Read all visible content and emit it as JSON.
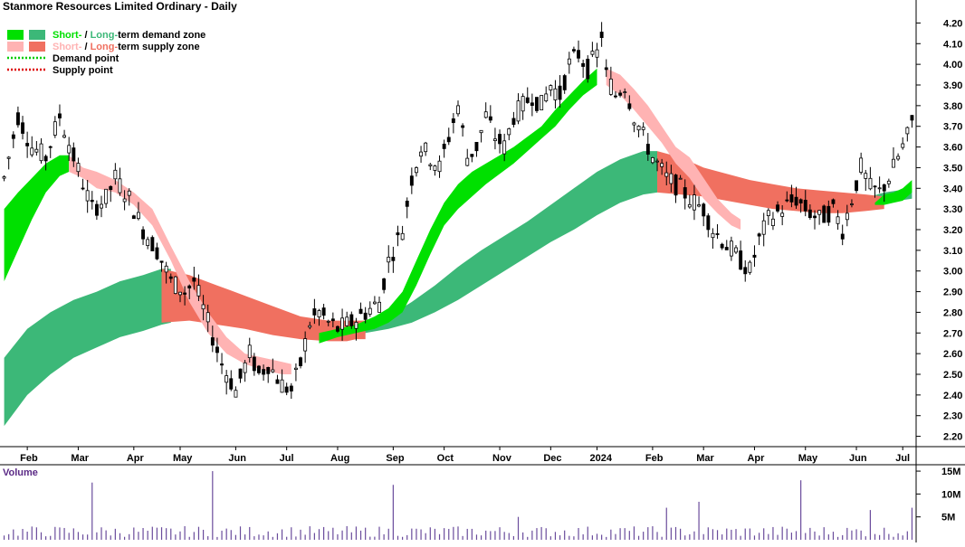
{
  "chart_data": {
    "type": "candlestick",
    "title": "Stanmore Resources Limited Ordinary - Daily",
    "legend": [
      {
        "short": "Short-",
        "sep": " / ",
        "long": "Long-",
        "rest": "term demand zone",
        "short_color": "#00e000",
        "long_color": "#3cb878"
      },
      {
        "short": "Short-",
        "sep": " / ",
        "long": "Long-",
        "rest": "term supply zone",
        "short_color": "#ffb3b3",
        "long_color": "#f07060"
      },
      {
        "label": "Demand point",
        "color": "#00cc00"
      },
      {
        "label": "Supply point",
        "color": "#dd0000"
      }
    ],
    "legend_placement": "top-left",
    "ylim": [
      2.15,
      4.25
    ],
    "y_ticks": [
      "4.20",
      "4.10",
      "4.00",
      "3.90",
      "3.80",
      "3.70",
      "3.60",
      "3.50",
      "3.40",
      "3.30",
      "3.20",
      "3.10",
      "3.00",
      "2.90",
      "2.80",
      "2.70",
      "2.60",
      "2.50",
      "2.40",
      "2.30",
      "2.20"
    ],
    "x_ticks": [
      "Feb",
      "Mar",
      "Apr",
      "May",
      "Jun",
      "Jul",
      "Aug",
      "Sep",
      "Oct",
      "Nov",
      "Dec",
      "2024",
      "Feb",
      "Mar",
      "Apr",
      "May",
      "Jun",
      "Jul"
    ],
    "x_tick_pos": [
      5,
      16,
      28,
      38,
      50,
      61,
      72,
      84,
      95,
      107,
      118,
      128,
      140,
      151,
      162,
      173,
      184,
      194
    ],
    "n_bars": 197,
    "price_path": [
      [
        0,
        3.45
      ],
      [
        3,
        3.75
      ],
      [
        6,
        3.6
      ],
      [
        9,
        3.55
      ],
      [
        12,
        3.75
      ],
      [
        15,
        3.55
      ],
      [
        19,
        3.3
      ],
      [
        22,
        3.35
      ],
      [
        24,
        3.45
      ],
      [
        27,
        3.35
      ],
      [
        30,
        3.2
      ],
      [
        33,
        3.1
      ],
      [
        36,
        2.95
      ],
      [
        39,
        2.9
      ],
      [
        41,
        2.95
      ],
      [
        44,
        2.75
      ],
      [
        47,
        2.55
      ],
      [
        50,
        2.42
      ],
      [
        53,
        2.6
      ],
      [
        55,
        2.5
      ],
      [
        57,
        2.55
      ],
      [
        60,
        2.45
      ],
      [
        62,
        2.42
      ],
      [
        64,
        2.55
      ],
      [
        66,
        2.75
      ],
      [
        68,
        2.8
      ],
      [
        70,
        2.75
      ],
      [
        72,
        2.72
      ],
      [
        75,
        2.75
      ],
      [
        78,
        2.8
      ],
      [
        81,
        2.85
      ],
      [
        83,
        3.05
      ],
      [
        86,
        3.2
      ],
      [
        88,
        3.45
      ],
      [
        90,
        3.6
      ],
      [
        92,
        3.55
      ],
      [
        94,
        3.5
      ],
      [
        96,
        3.65
      ],
      [
        98,
        3.8
      ],
      [
        100,
        3.55
      ],
      [
        102,
        3.6
      ],
      [
        104,
        3.75
      ],
      [
        106,
        3.65
      ],
      [
        108,
        3.6
      ],
      [
        110,
        3.75
      ],
      [
        112,
        3.8
      ],
      [
        114,
        3.85
      ],
      [
        116,
        3.8
      ],
      [
        118,
        3.9
      ],
      [
        120,
        3.85
      ],
      [
        122,
        4.0
      ],
      [
        124,
        4.05
      ],
      [
        126,
        3.98
      ],
      [
        128,
        4.05
      ],
      [
        129,
        4.15
      ],
      [
        130,
        3.95
      ],
      [
        132,
        3.85
      ],
      [
        134,
        3.9
      ],
      [
        136,
        3.75
      ],
      [
        138,
        3.65
      ],
      [
        140,
        3.55
      ],
      [
        143,
        3.45
      ],
      [
        146,
        3.4
      ],
      [
        148,
        3.35
      ],
      [
        151,
        3.3
      ],
      [
        153,
        3.2
      ],
      [
        155,
        3.15
      ],
      [
        157,
        3.1
      ],
      [
        159,
        3.05
      ],
      [
        161,
        3.0
      ],
      [
        163,
        3.15
      ],
      [
        165,
        3.25
      ],
      [
        168,
        3.3
      ],
      [
        171,
        3.35
      ],
      [
        173,
        3.3
      ],
      [
        176,
        3.25
      ],
      [
        179,
        3.3
      ],
      [
        181,
        3.2
      ],
      [
        183,
        3.35
      ],
      [
        185,
        3.5
      ],
      [
        187,
        3.4
      ],
      [
        189,
        3.38
      ],
      [
        191,
        3.45
      ],
      [
        193,
        3.55
      ],
      [
        195,
        3.65
      ],
      [
        196,
        3.72
      ]
    ],
    "short_demand_zones": [
      {
        "x": [
          0,
          3,
          6,
          9,
          12,
          14
        ],
        "hi": [
          3.3,
          3.38,
          3.45,
          3.52,
          3.56,
          3.56
        ],
        "lo": [
          2.95,
          3.1,
          3.25,
          3.38,
          3.46,
          3.48
        ]
      },
      {
        "x": [
          68,
          72,
          76,
          80,
          83,
          86,
          89,
          92,
          95,
          98,
          101,
          104,
          107,
          110,
          113,
          116,
          119,
          122,
          125,
          128
        ],
        "hi": [
          2.7,
          2.72,
          2.74,
          2.78,
          2.82,
          2.9,
          3.05,
          3.2,
          3.33,
          3.42,
          3.48,
          3.52,
          3.56,
          3.6,
          3.65,
          3.7,
          3.78,
          3.85,
          3.92,
          3.98
        ],
        "lo": [
          2.65,
          2.68,
          2.7,
          2.72,
          2.75,
          2.8,
          2.93,
          3.08,
          3.22,
          3.3,
          3.36,
          3.42,
          3.47,
          3.52,
          3.58,
          3.64,
          3.7,
          3.78,
          3.85,
          3.9
        ]
      },
      {
        "x": [
          188,
          190,
          192,
          194,
          196
        ],
        "hi": [
          3.33,
          3.37,
          3.38,
          3.4,
          3.44
        ],
        "lo": [
          3.32,
          3.32,
          3.33,
          3.34,
          3.38
        ]
      }
    ],
    "long_demand_zones": [
      {
        "x": [
          0,
          5,
          10,
          15,
          20,
          25,
          30,
          34,
          36
        ],
        "hi": [
          2.58,
          2.72,
          2.8,
          2.86,
          2.9,
          2.95,
          2.98,
          3.01,
          3.01
        ],
        "lo": [
          2.25,
          2.4,
          2.5,
          2.58,
          2.63,
          2.68,
          2.71,
          2.74,
          2.75
        ]
      },
      {
        "x": [
          68,
          73,
          78,
          83,
          88,
          93,
          98,
          103,
          108,
          113,
          118,
          123,
          128,
          133,
          138,
          141
        ],
        "hi": [
          2.7,
          2.72,
          2.74,
          2.78,
          2.85,
          2.93,
          3.02,
          3.1,
          3.17,
          3.24,
          3.32,
          3.4,
          3.48,
          3.54,
          3.58,
          3.58
        ],
        "lo": [
          2.68,
          2.69,
          2.7,
          2.72,
          2.75,
          2.8,
          2.86,
          2.93,
          3.0,
          3.07,
          3.14,
          3.2,
          3.27,
          3.33,
          3.37,
          3.38
        ]
      },
      {
        "x": [
          181,
          184,
          187,
          190,
          193,
          196
        ],
        "hi": [
          3.33,
          3.34,
          3.36,
          3.38,
          3.39,
          3.4
        ],
        "lo": [
          3.3,
          3.31,
          3.32,
          3.33,
          3.34,
          3.35
        ]
      }
    ],
    "short_supply_zones": [
      {
        "x": [
          14,
          17,
          20,
          24,
          28,
          32,
          36,
          40,
          44,
          48,
          52,
          56,
          60,
          62
        ],
        "hi": [
          3.56,
          3.5,
          3.48,
          3.44,
          3.38,
          3.3,
          3.12,
          2.95,
          2.8,
          2.68,
          2.6,
          2.58,
          2.56,
          2.55
        ],
        "lo": [
          3.48,
          3.45,
          3.4,
          3.38,
          3.32,
          3.22,
          3.05,
          2.85,
          2.7,
          2.6,
          2.55,
          2.52,
          2.5,
          2.5
        ]
      },
      {
        "x": [
          130,
          133,
          136,
          139,
          142,
          145,
          148,
          151,
          154,
          157,
          159
        ],
        "hi": [
          3.98,
          3.95,
          3.88,
          3.8,
          3.7,
          3.6,
          3.55,
          3.45,
          3.35,
          3.28,
          3.25
        ],
        "lo": [
          3.9,
          3.85,
          3.78,
          3.7,
          3.62,
          3.52,
          3.45,
          3.35,
          3.28,
          3.22,
          3.2
        ]
      }
    ],
    "long_supply_zones": [
      {
        "x": [
          34,
          40,
          46,
          52,
          58,
          64,
          70,
          74,
          76,
          78
        ],
        "hi": [
          3.01,
          2.98,
          2.93,
          2.88,
          2.83,
          2.78,
          2.76,
          2.76,
          2.76,
          2.76
        ],
        "lo": [
          2.75,
          2.76,
          2.74,
          2.72,
          2.69,
          2.67,
          2.66,
          2.66,
          2.67,
          2.67
        ]
      },
      {
        "x": [
          141,
          146,
          151,
          156,
          161,
          166,
          171,
          176,
          181,
          186,
          190
        ],
        "hi": [
          3.58,
          3.55,
          3.5,
          3.47,
          3.44,
          3.42,
          3.4,
          3.39,
          3.38,
          3.37,
          3.36
        ],
        "lo": [
          3.38,
          3.37,
          3.36,
          3.34,
          3.32,
          3.3,
          3.29,
          3.28,
          3.28,
          3.29,
          3.3
        ]
      }
    ],
    "volume_label": "Volume",
    "volume_ticks": [
      "15M",
      "10M",
      "5M"
    ],
    "volume_ylim": [
      0,
      16
    ],
    "volume_spikes": [
      [
        19,
        12.5
      ],
      [
        45,
        15
      ],
      [
        84,
        12
      ],
      [
        111,
        5
      ],
      [
        143,
        7
      ],
      [
        150,
        8.3
      ],
      [
        172,
        13
      ],
      [
        187,
        6.5
      ],
      [
        196,
        7
      ]
    ]
  }
}
